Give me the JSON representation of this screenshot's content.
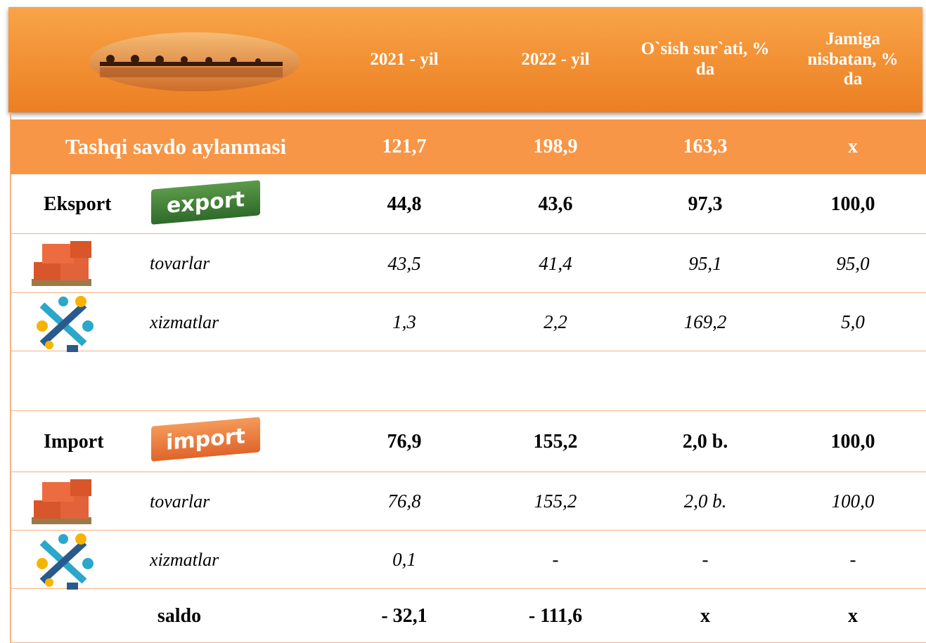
{
  "header": {
    "columns": [
      "2021 - yil",
      "2022 - yil",
      "O`sish sur`ati, % da",
      "Jamiga nisbatan, % da"
    ]
  },
  "badges": {
    "export": "export",
    "import": "import"
  },
  "rows": [
    {
      "label": "Tashqi savdo aylanmasi",
      "values": [
        "121,7",
        "198,9",
        "163,3",
        "x"
      ]
    },
    {
      "label": "Eksport",
      "values": [
        "44,8",
        "43,6",
        "97,3",
        "100,0"
      ]
    },
    {
      "label": "tovarlar",
      "values": [
        "43,5",
        "41,4",
        "95,1",
        "95,0"
      ]
    },
    {
      "label": "xizmatlar",
      "values": [
        "1,3",
        "2,2",
        "169,2",
        "5,0"
      ]
    },
    {
      "label": "Import",
      "values": [
        "76,9",
        "155,2",
        "2,0 b.",
        "100,0"
      ]
    },
    {
      "label": "tovarlar",
      "values": [
        "76,8",
        "155,2",
        "2,0 b.",
        "100,0"
      ]
    },
    {
      "label": "xizmatlar",
      "values": [
        "0,1",
        "-",
        "-",
        "-"
      ]
    },
    {
      "label": "saldo",
      "values": [
        "- 32,1",
        "- 111,6",
        "x",
        "x"
      ]
    }
  ]
}
